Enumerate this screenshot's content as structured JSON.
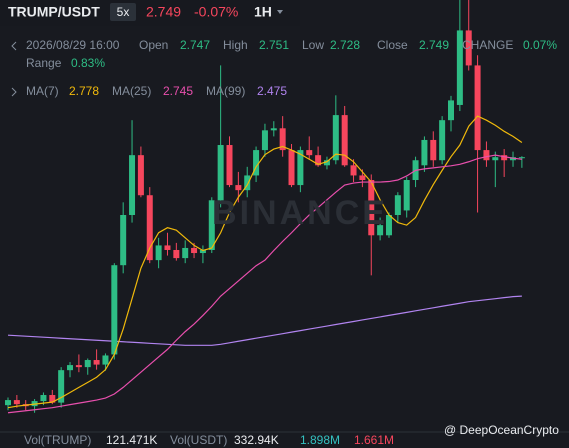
{
  "header": {
    "symbol": "TRUMP/USDT",
    "leverage": "5x",
    "change": "-0.07%",
    "interval": "1H",
    "time": "2026/08/29 16:00",
    "open_label": "Open",
    "high_label": "High",
    "low_label": "Low",
    "close_label": "Close",
    "change_label": "CHANGE",
    "change_pct": "0.07%",
    "range_label": "Range",
    "range": "0.83%"
  },
  "chart_data": {
    "type": "candlestick",
    "ylim": [
      2.211,
      3.059
    ],
    "up_color": "#2ebd85",
    "down_color": "#f6465d",
    "open": [
      2.26,
      2.27,
      2.262,
      2.258,
      2.268,
      2.28,
      2.265,
      2.329,
      2.339,
      2.335,
      2.349,
      2.34,
      2.36,
      2.536,
      2.635,
      2.753,
      2.674,
      2.546,
      2.575,
      2.566,
      2.55,
      2.57,
      2.56,
      2.566,
      2.664,
      2.773,
      2.694,
      2.684,
      2.713,
      2.763,
      2.802,
      2.806,
      2.763,
      2.694,
      2.763,
      2.753,
      2.733,
      2.743,
      2.832,
      2.733,
      2.713,
      2.704,
      2.595,
      2.595,
      2.635,
      2.644,
      2.704,
      2.733,
      2.783,
      2.743,
      2.822,
      2.852,
      2.999,
      2.93,
      2.763,
      2.743,
      2.753,
      2.743,
      2.747
    ],
    "high": [
      2.275,
      2.28,
      2.27,
      2.272,
      2.285,
      2.29,
      2.335,
      2.345,
      2.36,
      2.352,
      2.37,
      2.362,
      2.54,
      2.66,
      2.822,
      2.77,
      2.69,
      2.59,
      2.6,
      2.58,
      2.585,
      2.58,
      2.575,
      2.67,
      2.93,
      2.79,
      2.72,
      2.73,
      2.77,
      2.815,
      2.82,
      2.83,
      2.775,
      2.77,
      2.79,
      2.77,
      2.75,
      2.871,
      2.85,
      2.745,
      2.725,
      2.715,
      2.63,
      2.64,
      2.68,
      2.71,
      2.75,
      2.79,
      2.8,
      2.83,
      2.87,
      3.059,
      3.059,
      2.95,
      2.78,
      2.76,
      2.765,
      2.76,
      2.751
    ],
    "low": [
      2.25,
      2.255,
      2.25,
      2.245,
      2.26,
      2.262,
      2.255,
      2.315,
      2.325,
      2.32,
      2.33,
      2.328,
      2.35,
      2.52,
      2.62,
      2.67,
      2.54,
      2.53,
      2.555,
      2.545,
      2.54,
      2.55,
      2.54,
      2.56,
      2.65,
      2.69,
      2.66,
      2.67,
      2.7,
      2.75,
      2.79,
      2.75,
      2.69,
      2.68,
      2.745,
      2.73,
      2.725,
      2.735,
      2.73,
      2.7,
      2.69,
      2.516,
      2.585,
      2.59,
      2.62,
      2.63,
      2.69,
      2.72,
      2.73,
      2.735,
      2.8,
      2.84,
      2.92,
      2.64,
      2.73,
      2.69,
      2.71,
      2.73,
      2.728
    ],
    "close": [
      2.27,
      2.262,
      2.258,
      2.268,
      2.28,
      2.265,
      2.329,
      2.339,
      2.335,
      2.349,
      2.34,
      2.358,
      2.536,
      2.635,
      2.753,
      2.674,
      2.546,
      2.575,
      2.566,
      2.55,
      2.57,
      2.56,
      2.566,
      2.664,
      2.773,
      2.694,
      2.684,
      2.713,
      2.763,
      2.802,
      2.806,
      2.763,
      2.694,
      2.763,
      2.753,
      2.733,
      2.743,
      2.832,
      2.733,
      2.713,
      2.704,
      2.595,
      2.615,
      2.635,
      2.674,
      2.704,
      2.743,
      2.783,
      2.743,
      2.822,
      2.861,
      2.999,
      2.93,
      2.763,
      2.743,
      2.749,
      2.743,
      2.749,
      2.749
    ],
    "series": [
      {
        "name": "MA(7)",
        "color": "#f0b90b",
        "values": [
          2.255,
          2.258,
          2.26,
          2.262,
          2.264,
          2.266,
          2.275,
          2.285,
          2.295,
          2.305,
          2.315,
          2.33,
          2.36,
          2.41,
          2.47,
          2.53,
          2.57,
          2.6,
          2.61,
          2.605,
          2.59,
          2.575,
          2.565,
          2.57,
          2.6,
          2.64,
          2.67,
          2.694,
          2.73,
          2.754,
          2.765,
          2.77,
          2.763,
          2.755,
          2.745,
          2.735,
          2.74,
          2.755,
          2.753,
          2.74,
          2.72,
          2.7,
          2.665,
          2.635,
          2.62,
          2.615,
          2.63,
          2.664,
          2.695,
          2.723,
          2.75,
          2.773,
          2.81,
          2.83,
          2.822,
          2.812,
          2.8,
          2.79,
          2.778
        ]
      },
      {
        "name": "MA(25)",
        "color": "#e84fad",
        "values": [
          2.245,
          2.247,
          2.249,
          2.251,
          2.253,
          2.255,
          2.258,
          2.261,
          2.264,
          2.267,
          2.27,
          2.274,
          2.282,
          2.295,
          2.31,
          2.325,
          2.34,
          2.355,
          2.37,
          2.388,
          2.405,
          2.42,
          2.437,
          2.455,
          2.475,
          2.49,
          2.505,
          2.52,
          2.535,
          2.546,
          2.565,
          2.583,
          2.6,
          2.618,
          2.635,
          2.65,
          2.665,
          2.68,
          2.694,
          2.698,
          2.7,
          2.7,
          2.7,
          2.701,
          2.704,
          2.712,
          2.723,
          2.726,
          2.728,
          2.73,
          2.732,
          2.735,
          2.74,
          2.746,
          2.75,
          2.753,
          2.75,
          2.747,
          2.745
        ]
      },
      {
        "name": "MA(99)",
        "color": "#b184f0",
        "values": [
          2.398,
          2.397,
          2.396,
          2.395,
          2.394,
          2.393,
          2.392,
          2.391,
          2.39,
          2.389,
          2.388,
          2.387,
          2.386,
          2.385,
          2.384,
          2.383,
          2.382,
          2.381,
          2.38,
          2.379,
          2.378,
          2.378,
          2.378,
          2.378,
          2.38,
          2.383,
          2.386,
          2.389,
          2.392,
          2.395,
          2.398,
          2.401,
          2.404,
          2.407,
          2.41,
          2.413,
          2.416,
          2.419,
          2.422,
          2.425,
          2.428,
          2.431,
          2.434,
          2.437,
          2.44,
          2.443,
          2.446,
          2.449,
          2.452,
          2.455,
          2.458,
          2.461,
          2.464,
          2.466,
          2.468,
          2.47,
          2.472,
          2.474,
          2.475
        ]
      }
    ]
  },
  "volume": {
    "base_label": "Vol(TRUMP)",
    "base": "121.471K",
    "quote_label": "Vol(USDT)",
    "quote": "332.94K",
    "ma1": "1.898M",
    "ma2": "1.661M"
  },
  "watermark": "BINANCE",
  "credit": "@ DeepOceanCrypto"
}
